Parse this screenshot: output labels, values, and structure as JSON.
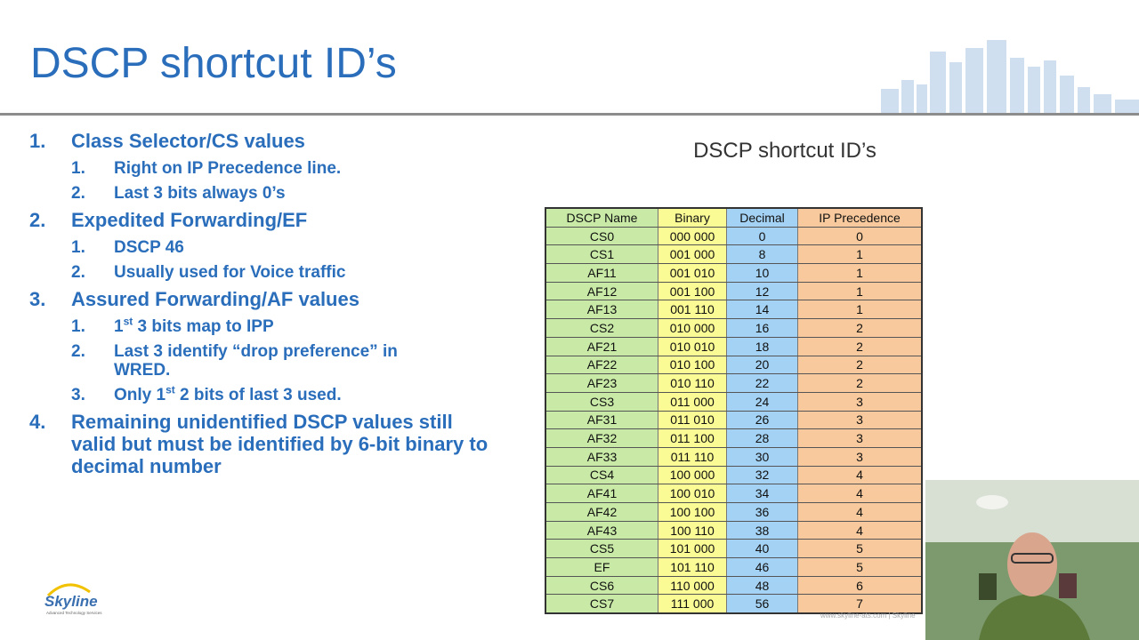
{
  "title": "DSCP shortcut ID’s",
  "list": [
    {
      "number": "1.",
      "parts": [
        "Class Selector/CS values"
      ],
      "subitems": [
        {
          "number": "1.",
          "parts": [
            "Right on IP Precedence line."
          ]
        },
        {
          "number": "2.",
          "parts": [
            "Last 3 bits always 0’s"
          ]
        }
      ]
    },
    {
      "number": "2.",
      "parts": [
        "Expedited Forwarding/EF"
      ],
      "subitems": [
        {
          "number": "1.",
          "parts": [
            "DSCP 46"
          ]
        },
        {
          "number": "2.",
          "parts": [
            "Usually used for Voice traffic"
          ]
        }
      ]
    },
    {
      "number": "3.",
      "parts": [
        "Assured Forwarding/AF values"
      ],
      "subitems": [
        {
          "number": "1.",
          "parts": [
            "1",
            "st",
            " 3 bits map to IPP"
          ]
        },
        {
          "number": "2.",
          "parts": [
            "Last 3 identify “drop preference” in WRED."
          ]
        },
        {
          "number": "3.",
          "parts": [
            "Only 1",
            "st",
            " 2 bits of last 3 used."
          ]
        }
      ]
    },
    {
      "number": "4.",
      "parts": [
        "Remaining unidentified DSCP values still valid but must be identified by 6-bit binary to decimal number"
      ],
      "subitems": []
    }
  ],
  "table": {
    "title": "DSCP shortcut ID’s",
    "header": [
      "DSCP Name",
      "Binary",
      "Decimal",
      "IP Precedence"
    ],
    "rows": [
      [
        "CS0",
        "000 000",
        "0",
        "0"
      ],
      [
        "CS1",
        "001 000",
        "8",
        "1"
      ],
      [
        "AF11",
        "001 010",
        "10",
        "1"
      ],
      [
        "AF12",
        "001 100",
        "12",
        "1"
      ],
      [
        "AF13",
        "001 110",
        "14",
        "1"
      ],
      [
        "CS2",
        "010 000",
        "16",
        "2"
      ],
      [
        "AF21",
        "010 010",
        "18",
        "2"
      ],
      [
        "AF22",
        "010 100",
        "20",
        "2"
      ],
      [
        "AF23",
        "010 110",
        "22",
        "2"
      ],
      [
        "CS3",
        "011 000",
        "24",
        "3"
      ],
      [
        "AF31",
        "011 010",
        "26",
        "3"
      ],
      [
        "AF32",
        "011 100",
        "28",
        "3"
      ],
      [
        "AF33",
        "011 110",
        "30",
        "3"
      ],
      [
        "CS4",
        "100 000",
        "32",
        "4"
      ],
      [
        "AF41",
        "100 010",
        "34",
        "4"
      ],
      [
        "AF42",
        "100 100",
        "36",
        "4"
      ],
      [
        "AF43",
        "100 110",
        "38",
        "4"
      ],
      [
        "CS5",
        "101 000",
        "40",
        "5"
      ],
      [
        "EF",
        "101 110",
        "46",
        "5"
      ],
      [
        "CS6",
        "110 000",
        "48",
        "6"
      ],
      [
        "CS7",
        "111 000",
        "56",
        "7"
      ]
    ]
  },
  "logo": {
    "name": "Skyline",
    "tagline": "Advanced Technology Services"
  },
  "footer": "www.skyline-ats.com | Skyline"
}
